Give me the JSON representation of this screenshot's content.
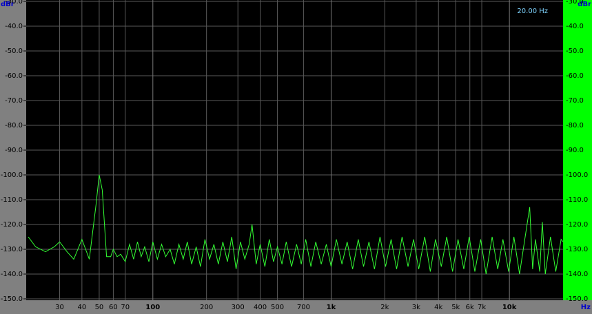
{
  "chart_data": {
    "type": "line",
    "x_scale": "log",
    "grid": true,
    "color": "#33ff33",
    "y_label": "dBr",
    "y2_label": "dBr",
    "x_label": "Hz",
    "annotation": "20.00 Hz",
    "xlim": [
      20,
      20000
    ],
    "xticks": [
      30,
      40,
      50,
      60,
      70,
      100,
      200,
      300,
      400,
      500,
      700,
      {
        "value": 1000,
        "label": "1k"
      },
      {
        "value": 2000,
        "label": "2k"
      },
      {
        "value": 3000,
        "label": "3k"
      },
      {
        "value": 4000,
        "label": "4k"
      },
      {
        "value": 5000,
        "label": "5k"
      },
      {
        "value": 6000,
        "label": "6k"
      },
      {
        "value": 7000,
        "label": "7k"
      },
      {
        "value": 10000,
        "label": "10k"
      }
    ],
    "ylim": [
      -150,
      -30
    ],
    "yticks": [
      {
        "value": -30,
        "label": "-30.0"
      },
      {
        "value": -40,
        "label": "-40.0"
      },
      {
        "value": -50,
        "label": "-50.0"
      },
      {
        "value": -60,
        "label": "-60.0"
      },
      {
        "value": -70,
        "label": "-70.0"
      },
      {
        "value": -80,
        "label": "-80.0"
      },
      {
        "value": -90,
        "label": "-90.0"
      },
      {
        "value": -100,
        "label": "-100.0"
      },
      {
        "value": -110,
        "label": "-110.0"
      },
      {
        "value": -120,
        "label": "-120.0"
      },
      {
        "value": -130,
        "label": "-130.0"
      },
      {
        "value": -140,
        "label": "-140.0"
      },
      {
        "value": -150,
        "label": "-150.0"
      }
    ],
    "x": [
      20,
      22,
      25,
      28,
      30,
      33,
      36,
      40,
      44,
      48,
      50,
      52,
      55,
      58,
      60,
      63,
      66,
      70,
      74,
      78,
      82,
      86,
      90,
      95,
      100,
      106,
      112,
      118,
      125,
      132,
      140,
      148,
      156,
      165,
      175,
      185,
      196,
      208,
      220,
      233,
      247,
      262,
      277,
      293,
      310,
      328,
      347,
      360,
      380,
      400,
      425,
      450,
      475,
      500,
      530,
      560,
      600,
      640,
      680,
      720,
      770,
      820,
      880,
      940,
      1000,
      1070,
      1150,
      1230,
      1320,
      1420,
      1520,
      1630,
      1750,
      1880,
      2020,
      2170,
      2330,
      2500,
      2700,
      2900,
      3100,
      3350,
      3600,
      3850,
      4150,
      4450,
      4800,
      5150,
      5550,
      5950,
      6400,
      6900,
      7400,
      8000,
      8600,
      9200,
      9900,
      10600,
      11400,
      12200,
      13000,
      13500,
      14000,
      14800,
      15300,
      15900,
      17000,
      18200,
      19500,
      20000
    ],
    "values": [
      -125,
      -129,
      -131,
      -129,
      -127,
      -131,
      -134,
      -126,
      -134,
      -112,
      -100,
      -106,
      -133,
      -133,
      -130,
      -133,
      -132,
      -135,
      -128,
      -134,
      -127,
      -133,
      -129,
      -135,
      -127,
      -134,
      -128,
      -133,
      -130,
      -136,
      -128,
      -134,
      -127,
      -136,
      -129,
      -137,
      -126,
      -134,
      -128,
      -136,
      -127,
      -135,
      -125,
      -138,
      -127,
      -134,
      -128,
      -120,
      -136,
      -128,
      -137,
      -126,
      -135,
      -129,
      -136,
      -127,
      -137,
      -128,
      -136,
      -126,
      -137,
      -127,
      -136,
      -128,
      -137,
      -126,
      -136,
      -127,
      -138,
      -126,
      -137,
      -127,
      -138,
      -125,
      -137,
      -126,
      -138,
      -125,
      -137,
      -126,
      -138,
      -125,
      -139,
      -126,
      -137,
      -125,
      -139,
      -126,
      -138,
      -125,
      -139,
      -126,
      -140,
      -125,
      -138,
      -126,
      -139,
      -125,
      -140,
      -126,
      -113,
      -138,
      -126,
      -139,
      -119,
      -140,
      -125,
      -139,
      -126,
      -127
    ]
  }
}
